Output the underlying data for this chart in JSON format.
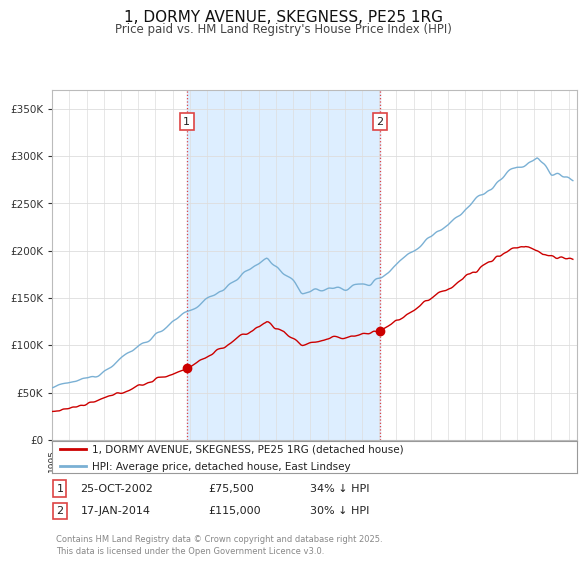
{
  "title": "1, DORMY AVENUE, SKEGNESS, PE25 1RG",
  "subtitle": "Price paid vs. HM Land Registry's House Price Index (HPI)",
  "ytick_values": [
    0,
    50000,
    100000,
    150000,
    200000,
    250000,
    300000,
    350000
  ],
  "ylim": [
    0,
    370000
  ],
  "xlim_start": 1995.0,
  "xlim_end": 2025.5,
  "legend_line1": "1, DORMY AVENUE, SKEGNESS, PE25 1RG (detached house)",
  "legend_line2": "HPI: Average price, detached house, East Lindsey",
  "line_color_red": "#cc0000",
  "line_color_blue": "#7ab0d4",
  "shade_color": "#ddeeff",
  "purchase1_x": 2002.82,
  "purchase1_y": 75500,
  "purchase1_label": "1",
  "purchase2_x": 2014.05,
  "purchase2_y": 115000,
  "purchase2_label": "2",
  "annotation1_date": "25-OCT-2002",
  "annotation1_price": "£75,500",
  "annotation1_hpi": "34% ↓ HPI",
  "annotation2_date": "17-JAN-2014",
  "annotation2_price": "£115,000",
  "annotation2_hpi": "30% ↓ HPI",
  "footer": "Contains HM Land Registry data © Crown copyright and database right 2025.\nThis data is licensed under the Open Government Licence v3.0.",
  "grid_color": "#dddddd",
  "vline_color": "#dd4444"
}
